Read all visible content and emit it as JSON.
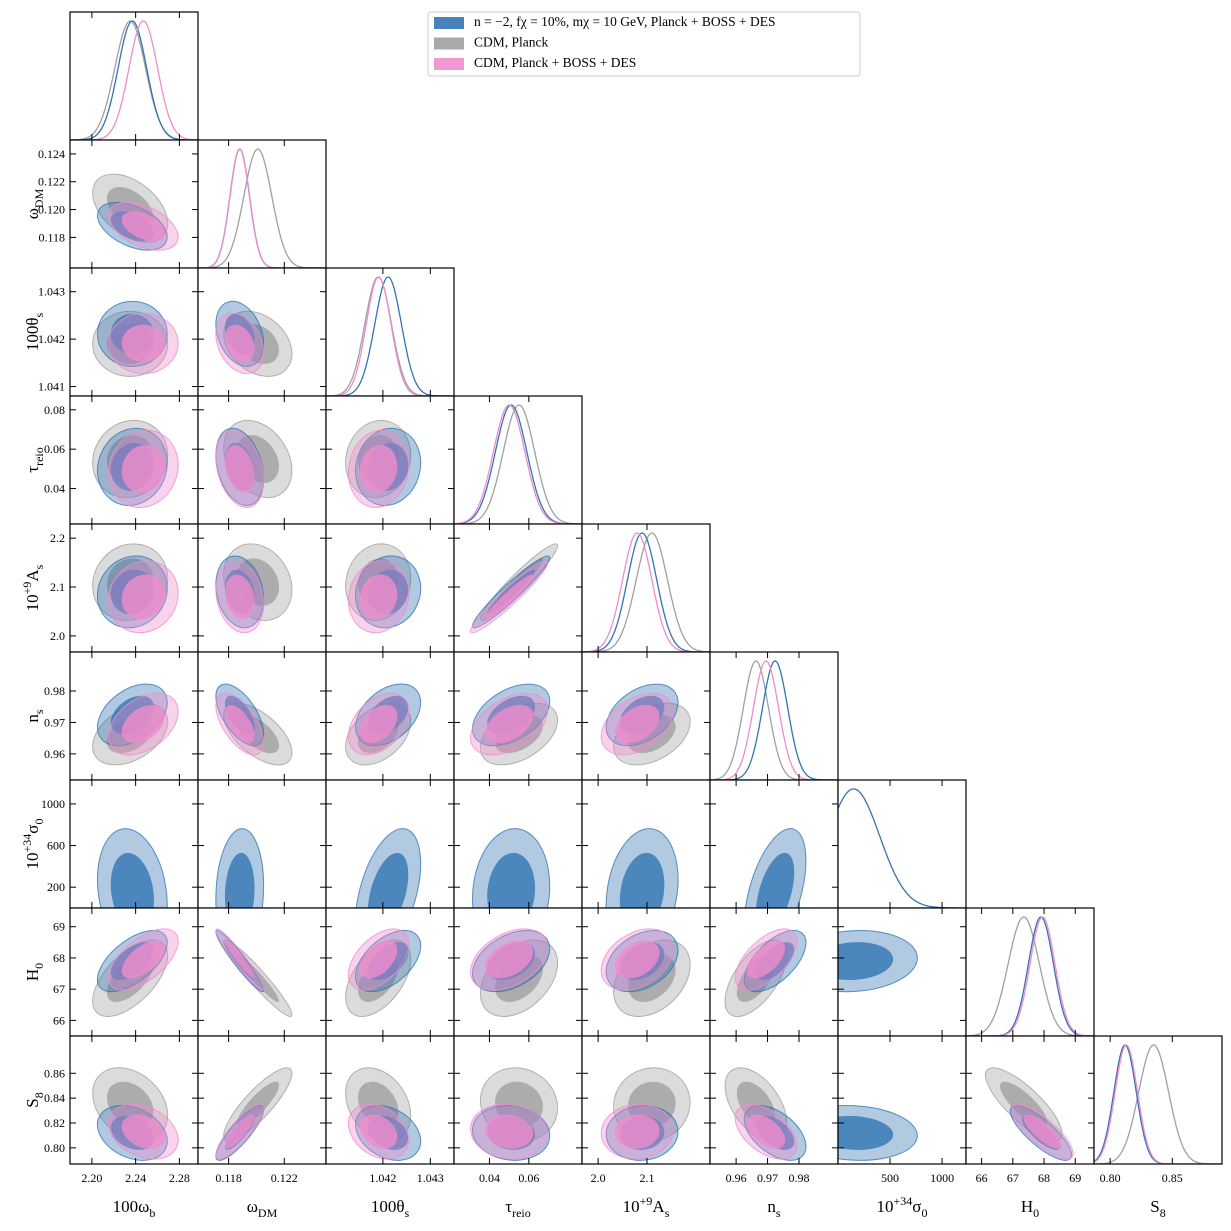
{
  "chart_data": {
    "type": "corner",
    "params": [
      {
        "label": [
          {
            "text": "100ω"
          },
          {
            "text": "b",
            "style": "sub"
          }
        ],
        "xlim": [
          2.18,
          2.297
        ],
        "xticks": [
          {
            "value": 2.2,
            "label": "2.20"
          },
          2.24,
          2.28
        ]
      },
      {
        "label": [
          {
            "text": "ω"
          },
          {
            "text": "DM",
            "style": "sub"
          }
        ],
        "xlim": [
          0.1158,
          0.125
        ],
        "xticks": [
          0.118,
          0.122
        ],
        "yticks": [
          0.118,
          {
            "value": 0.12,
            "label": "0.120"
          },
          0.122,
          0.124
        ]
      },
      {
        "label": [
          {
            "text": "100θ"
          },
          {
            "text": "s",
            "style": "sub"
          }
        ],
        "xlim": [
          1.0408,
          1.0435
        ],
        "xticks": [
          1.042,
          1.043
        ],
        "yticks": [
          1.041,
          1.042,
          1.043
        ]
      },
      {
        "label": [
          {
            "text": "τ"
          },
          {
            "text": "reio",
            "style": "sub"
          }
        ],
        "xlim": [
          0.022,
          0.087
        ],
        "xticks": [
          0.04,
          0.06
        ],
        "yticks": [
          0.04,
          0.06,
          0.08
        ]
      },
      {
        "label": [
          {
            "text": "10"
          },
          {
            "text": "+9",
            "style": "sup"
          },
          {
            "text": "A"
          },
          {
            "text": "s",
            "style": "sub"
          }
        ],
        "xlim": [
          1.967,
          2.229
        ],
        "xticks": [
          {
            "value": 2,
            "label": "2.0"
          },
          2.1
        ],
        "yticks": [
          {
            "value": 2,
            "label": "2.0"
          },
          2.1,
          2.2
        ]
      },
      {
        "label": [
          {
            "text": "n"
          },
          {
            "text": "s",
            "style": "sub"
          }
        ],
        "xlim": [
          0.9517,
          0.9924
        ],
        "xticks": [
          0.96,
          0.97,
          0.98
        ],
        "yticks": [
          0.96,
          0.97,
          0.98
        ]
      },
      {
        "label": [
          {
            "text": "10"
          },
          {
            "text": "+34",
            "style": "sup"
          },
          {
            "text": "σ"
          },
          {
            "text": "0",
            "style": "sub"
          }
        ],
        "xlim": [
          0,
          1230
        ],
        "xticks": [
          500,
          1000
        ],
        "yticks": [
          200,
          600,
          1000
        ]
      },
      {
        "label": [
          {
            "text": "H"
          },
          {
            "text": "0",
            "style": "sub"
          }
        ],
        "xlim": [
          65.5,
          69.6
        ],
        "xticks": [
          66,
          67,
          68,
          69
        ],
        "yticks": [
          66,
          67,
          68,
          69
        ]
      },
      {
        "label": [
          {
            "text": "S"
          },
          {
            "text": "8",
            "style": "sub"
          }
        ],
        "xlim": [
          0.787,
          0.89
        ],
        "xticks": [
          {
            "value": 0.8,
            "label": "0.80"
          },
          0.85
        ],
        "yticks": [
          {
            "value": 0.8,
            "label": "0.80"
          },
          0.82,
          0.84,
          0.86
        ]
      }
    ],
    "series": [
      {
        "name": "CDM, Planck",
        "color": "#a0a0a0",
        "means": [
          2.235,
          0.1201,
          1.0419,
          0.055,
          2.11,
          0.9663,
          null,
          67.35,
          0.835
        ],
        "sigmas": [
          0.014,
          0.001,
          0.00028,
          0.008,
          0.032,
          0.004,
          null,
          0.5,
          0.012
        ]
      },
      {
        "name": "n = −2, fχ = 10%, mχ = 10 GeV, Planck + BOSS + DES",
        "color": "#3274b4",
        "means": [
          2.237,
          0.1188,
          1.04211,
          0.051,
          2.09,
          0.9724,
          150,
          67.9,
          0.812
        ],
        "sigmas": [
          0.013,
          0.0007,
          0.00028,
          0.008,
          0.03,
          0.004,
          250,
          0.4,
          0.009
        ]
      },
      {
        "name": "CDM, Planck + BOSS + DES",
        "color": "#f08ccc",
        "means": [
          2.247,
          0.1188,
          1.04191,
          0.05,
          2.08,
          0.9695,
          null,
          67.95,
          0.813
        ],
        "sigmas": [
          0.013,
          0.0007,
          0.00026,
          0.008,
          0.03,
          0.004,
          null,
          0.4,
          0.009
        ]
      }
    ],
    "legend_order": [
      1,
      0,
      2
    ],
    "correlations": [
      {
        "params": [
          0,
          1
        ],
        "rho": -0.45
      },
      {
        "params": [
          0,
          2
        ],
        "rho": 0
      },
      {
        "params": [
          0,
          3
        ],
        "rho": 0.1
      },
      {
        "params": [
          0,
          4
        ],
        "rho": 0.1
      },
      {
        "params": [
          0,
          5
        ],
        "rho": 0.4
      },
      {
        "params": [
          0,
          6
        ],
        "rho": -0.2
      },
      {
        "params": [
          0,
          7
        ],
        "rho": 0.6
      },
      {
        "params": [
          0,
          8
        ],
        "rho": -0.3
      },
      {
        "params": [
          1,
          2
        ],
        "rho": -0.3
      },
      {
        "params": [
          1,
          3
        ],
        "rho": -0.3
      },
      {
        "params": [
          1,
          4
        ],
        "rho": -0.2
      },
      {
        "params": [
          1,
          5
        ],
        "rho": -0.6
      },
      {
        "params": [
          1,
          6
        ],
        "rho": 0.1
      },
      {
        "params": [
          1,
          7
        ],
        "rho": -0.95
      },
      {
        "params": [
          1,
          8
        ],
        "rho": 0.85
      },
      {
        "params": [
          2,
          3
        ],
        "rho": 0.1
      },
      {
        "params": [
          2,
          4
        ],
        "rho": 0.1
      },
      {
        "params": [
          2,
          5
        ],
        "rho": 0.4
      },
      {
        "params": [
          2,
          6
        ],
        "rho": 0.45
      },
      {
        "params": [
          2,
          7
        ],
        "rho": 0.5
      },
      {
        "params": [
          2,
          8
        ],
        "rho": -0.3
      },
      {
        "params": [
          3,
          4
        ],
        "rho": 0.95
      },
      {
        "params": [
          3,
          5
        ],
        "rho": 0.45
      },
      {
        "params": [
          3,
          6
        ],
        "rho": 0.1
      },
      {
        "params": [
          3,
          7
        ],
        "rho": 0.4
      },
      {
        "params": [
          3,
          8
        ],
        "rho": -0.1
      },
      {
        "params": [
          4,
          5
        ],
        "rho": 0.4
      },
      {
        "params": [
          4,
          6
        ],
        "rho": 0.2
      },
      {
        "params": [
          4,
          7
        ],
        "rho": 0.35
      },
      {
        "params": [
          4,
          8
        ],
        "rho": 0.05
      },
      {
        "params": [
          5,
          6
        ],
        "rho": 0.5
      },
      {
        "params": [
          5,
          7
        ],
        "rho": 0.6
      },
      {
        "params": [
          5,
          8
        ],
        "rho": -0.5
      },
      {
        "params": [
          6,
          7
        ],
        "rho": 0.1
      },
      {
        "params": [
          6,
          8
        ],
        "rho": -0.1
      },
      {
        "params": [
          7,
          8
        ],
        "rho": -0.8
      }
    ]
  }
}
